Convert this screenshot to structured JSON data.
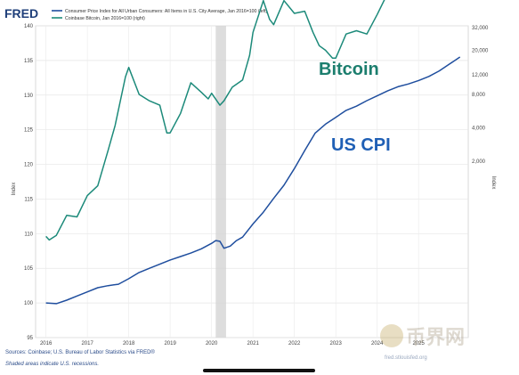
{
  "header": {
    "logo": "FRED",
    "legend": [
      {
        "label": "Consumer Price Index for All Urban Consumers: All Items in U.S. City Average, Jan 2016=100 (left)",
        "color": "#1f4e9e"
      },
      {
        "label": "Coinbase Bitcoin, Jan 2016=100 (right)",
        "color": "#1c8a7a"
      }
    ]
  },
  "footer": {
    "sources": "Sources: Coinbase; U.S. Bureau of Labor Statistics via FRED®",
    "note": "Shaded areas indicate U.S. recessions.",
    "watermark": "币界网",
    "url_fragment": "fred.stlouisfed.org"
  },
  "annotations": {
    "bitcoin": "Bitcoin",
    "cpi": "US CPI"
  },
  "colors": {
    "cpi": "#1f4e9e",
    "bitcoin": "#1c8a7a",
    "bitcoin_label": "#1c7e6e",
    "cpi_label": "#1f5fb5",
    "recession": "#d2d2d2"
  },
  "chart_data": {
    "type": "line",
    "ylabel": "Index",
    "ylabel_right": "Index",
    "left_axis": {
      "ylim": [
        95,
        140
      ],
      "ticks": [
        95,
        100,
        105,
        110,
        115,
        120,
        125,
        130,
        135,
        140
      ]
    },
    "right_axis": {
      "scale": "log",
      "ticks": [
        2000,
        4000,
        8000,
        12000,
        20000,
        32000
      ],
      "tick_labels": [
        "2,000",
        "4,000",
        "8,000",
        "12,000",
        "20,000",
        "32,000"
      ]
    },
    "x_range": [
      2015.75,
      2026.2
    ],
    "x_ticks": [
      2016,
      2017,
      2018,
      2019,
      2020,
      2021,
      2022,
      2023,
      2024,
      2025
    ],
    "recession": [
      2020.1,
      2020.35
    ],
    "series": [
      {
        "name": "Consumer Price Index for All Urban Consumers: All Items in U.S. City Average, Jan 2016=100",
        "axis": "left",
        "x": [
          2016.0,
          2016.25,
          2016.5,
          2016.75,
          2017.0,
          2017.25,
          2017.5,
          2017.75,
          2018.0,
          2018.25,
          2018.5,
          2018.75,
          2019.0,
          2019.25,
          2019.5,
          2019.75,
          2020.0,
          2020.1,
          2020.2,
          2020.3,
          2020.45,
          2020.6,
          2020.75,
          2021.0,
          2021.25,
          2021.5,
          2021.75,
          2022.0,
          2022.25,
          2022.5,
          2022.75,
          2023.0,
          2023.25,
          2023.5,
          2023.75,
          2024.0,
          2024.25,
          2024.5,
          2024.75,
          2025.0,
          2025.25,
          2025.5,
          2025.75,
          2026.0
        ],
        "values": [
          100.0,
          99.9,
          100.4,
          101.0,
          101.6,
          102.2,
          102.5,
          102.7,
          103.5,
          104.4,
          105.0,
          105.6,
          106.2,
          106.7,
          107.2,
          107.8,
          108.6,
          109.0,
          108.9,
          107.9,
          108.2,
          109.0,
          109.5,
          111.4,
          113.1,
          115.1,
          117.0,
          119.4,
          122.0,
          124.5,
          125.8,
          126.8,
          127.8,
          128.4,
          129.2,
          129.9,
          130.6,
          131.2,
          131.6,
          132.1,
          132.7,
          133.5,
          134.5,
          135.5
        ]
      },
      {
        "name": "Coinbase Bitcoin, Jan 2016=100",
        "axis": "right",
        "x": [
          2016.0,
          2016.08,
          2016.25,
          2016.5,
          2016.75,
          2017.0,
          2017.25,
          2017.5,
          2017.67,
          2017.92,
          2018.0,
          2018.25,
          2018.5,
          2018.75,
          2018.92,
          2019.0,
          2019.25,
          2019.5,
          2019.75,
          2019.92,
          2020.0,
          2020.2,
          2020.3,
          2020.5,
          2020.75,
          2020.92,
          2021.0,
          2021.25,
          2021.4,
          2021.5,
          2021.75,
          2022.0,
          2022.25,
          2022.45,
          2022.6,
          2022.75,
          2022.92,
          2023.0,
          2023.25,
          2023.5,
          2023.75,
          2024.0,
          2024.25,
          2024.5,
          2024.75,
          2024.92,
          2025.0,
          2025.25,
          2025.45,
          2025.6,
          2025.75,
          2026.0
        ],
        "values": [
          420,
          390,
          430,
          650,
          630,
          980,
          1200,
          2500,
          4200,
          11500,
          14000,
          8000,
          7000,
          6400,
          3600,
          3600,
          5400,
          10200,
          8400,
          7300,
          8200,
          6400,
          7000,
          9300,
          10800,
          18000,
          29000,
          56000,
          38000,
          34000,
          56000,
          43000,
          45000,
          29000,
          22000,
          20000,
          17000,
          17000,
          28000,
          30000,
          28000,
          42000,
          65000,
          62000,
          60000,
          95000,
          100000,
          85000,
          105000,
          118000,
          115000,
          119000
        ]
      }
    ]
  }
}
